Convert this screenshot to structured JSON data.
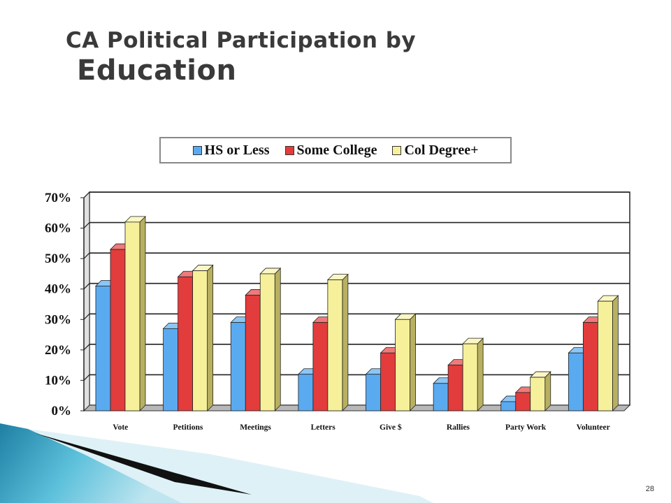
{
  "slide": {
    "title_line1": "CA Political Participation by",
    "title_line2": "Education",
    "page_number": "28"
  },
  "colors": {
    "hs": "#5aaaf0",
    "some_college": "#e23c3c",
    "col_degree": "#f6f09a",
    "accent_teal": "#2a8aa8"
  },
  "chart_data": {
    "type": "bar",
    "title": "",
    "xlabel": "",
    "ylabel": "",
    "ylim": [
      0,
      70
    ],
    "yticks": [
      "0%",
      "10%",
      "20%",
      "30%",
      "40%",
      "50%",
      "60%",
      "70%"
    ],
    "grid": true,
    "legend_position": "top",
    "categories": [
      "Vote",
      "Petitions",
      "Meetings",
      "Letters",
      "Give $",
      "Rallies",
      "Party Work",
      "Volunteer"
    ],
    "series": [
      {
        "name": "HS or Less",
        "values": [
          41,
          27,
          29,
          12,
          12,
          9,
          3,
          19
        ]
      },
      {
        "name": "Some College",
        "values": [
          53,
          44,
          38,
          29,
          19,
          15,
          6,
          29
        ]
      },
      {
        "name": "Col Degree+",
        "values": [
          62,
          46,
          45,
          43,
          30,
          22,
          11,
          36
        ]
      }
    ]
  }
}
